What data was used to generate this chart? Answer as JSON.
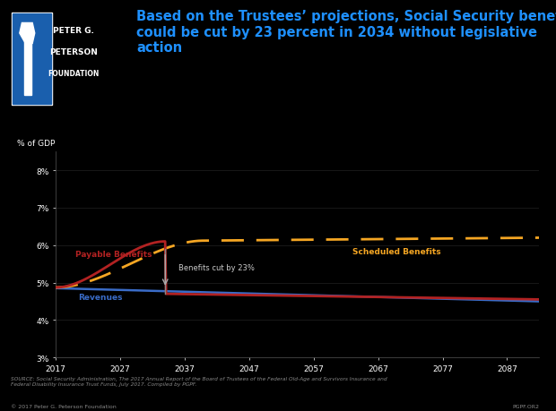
{
  "background_color": "#000000",
  "title_line1": "Based on the Trustees’ projections, Social Security benefits",
  "title_line2": "could be cut by 23 percent in 2034 without legislative",
  "title_line3": "action",
  "title_color": "#1e90ff",
  "title_fontsize": 10.5,
  "ylabel": "% of GDP",
  "ylabel_fontsize": 6.5,
  "ylim": [
    0.03,
    0.085
  ],
  "yticks": [
    0.03,
    0.04,
    0.05,
    0.06,
    0.07,
    0.08
  ],
  "ytick_labels": [
    "3%",
    "4%",
    "5%",
    "6%",
    "7%",
    "8%"
  ],
  "xlim": [
    2017,
    2092
  ],
  "xticks": [
    2017,
    2027,
    2037,
    2047,
    2057,
    2067,
    2077,
    2087
  ],
  "xtick_labels": [
    "2017",
    "2027",
    "2037",
    "2047",
    "2057",
    "2067",
    "2077",
    "2087"
  ],
  "source_text": "SOURCE: Social Security Administration, The 2017 Annual Report of the Board of Trustees of the Federal Old-Age and Survivors Insurance and\nFederal Disability Insurance Trust Funds, July 2017. Compiled by PGPF.",
  "copyright_text": "© 2017 Peter G. Peterson Foundation",
  "code_text": "PGPF.OR2",
  "revenue_color": "#3a6cc8",
  "payable_benefits_color": "#b22222",
  "scheduled_benefits_color": "#f5a623",
  "grid_color": "#2a2a2a",
  "tick_color": "#ffffff",
  "axis_color": "#ffffff",
  "revenue_label": "Revenues",
  "payable_label": "Payable Benefits",
  "scheduled_label": "Scheduled Benefits",
  "arrow_annotation": "Benefits cut by 23%",
  "cut_year": 2034,
  "logo_bg": "#1a5fad",
  "logo_line1": "PETER G.",
  "logo_line2": "PETERSON",
  "logo_line3": "FOUNDATION"
}
